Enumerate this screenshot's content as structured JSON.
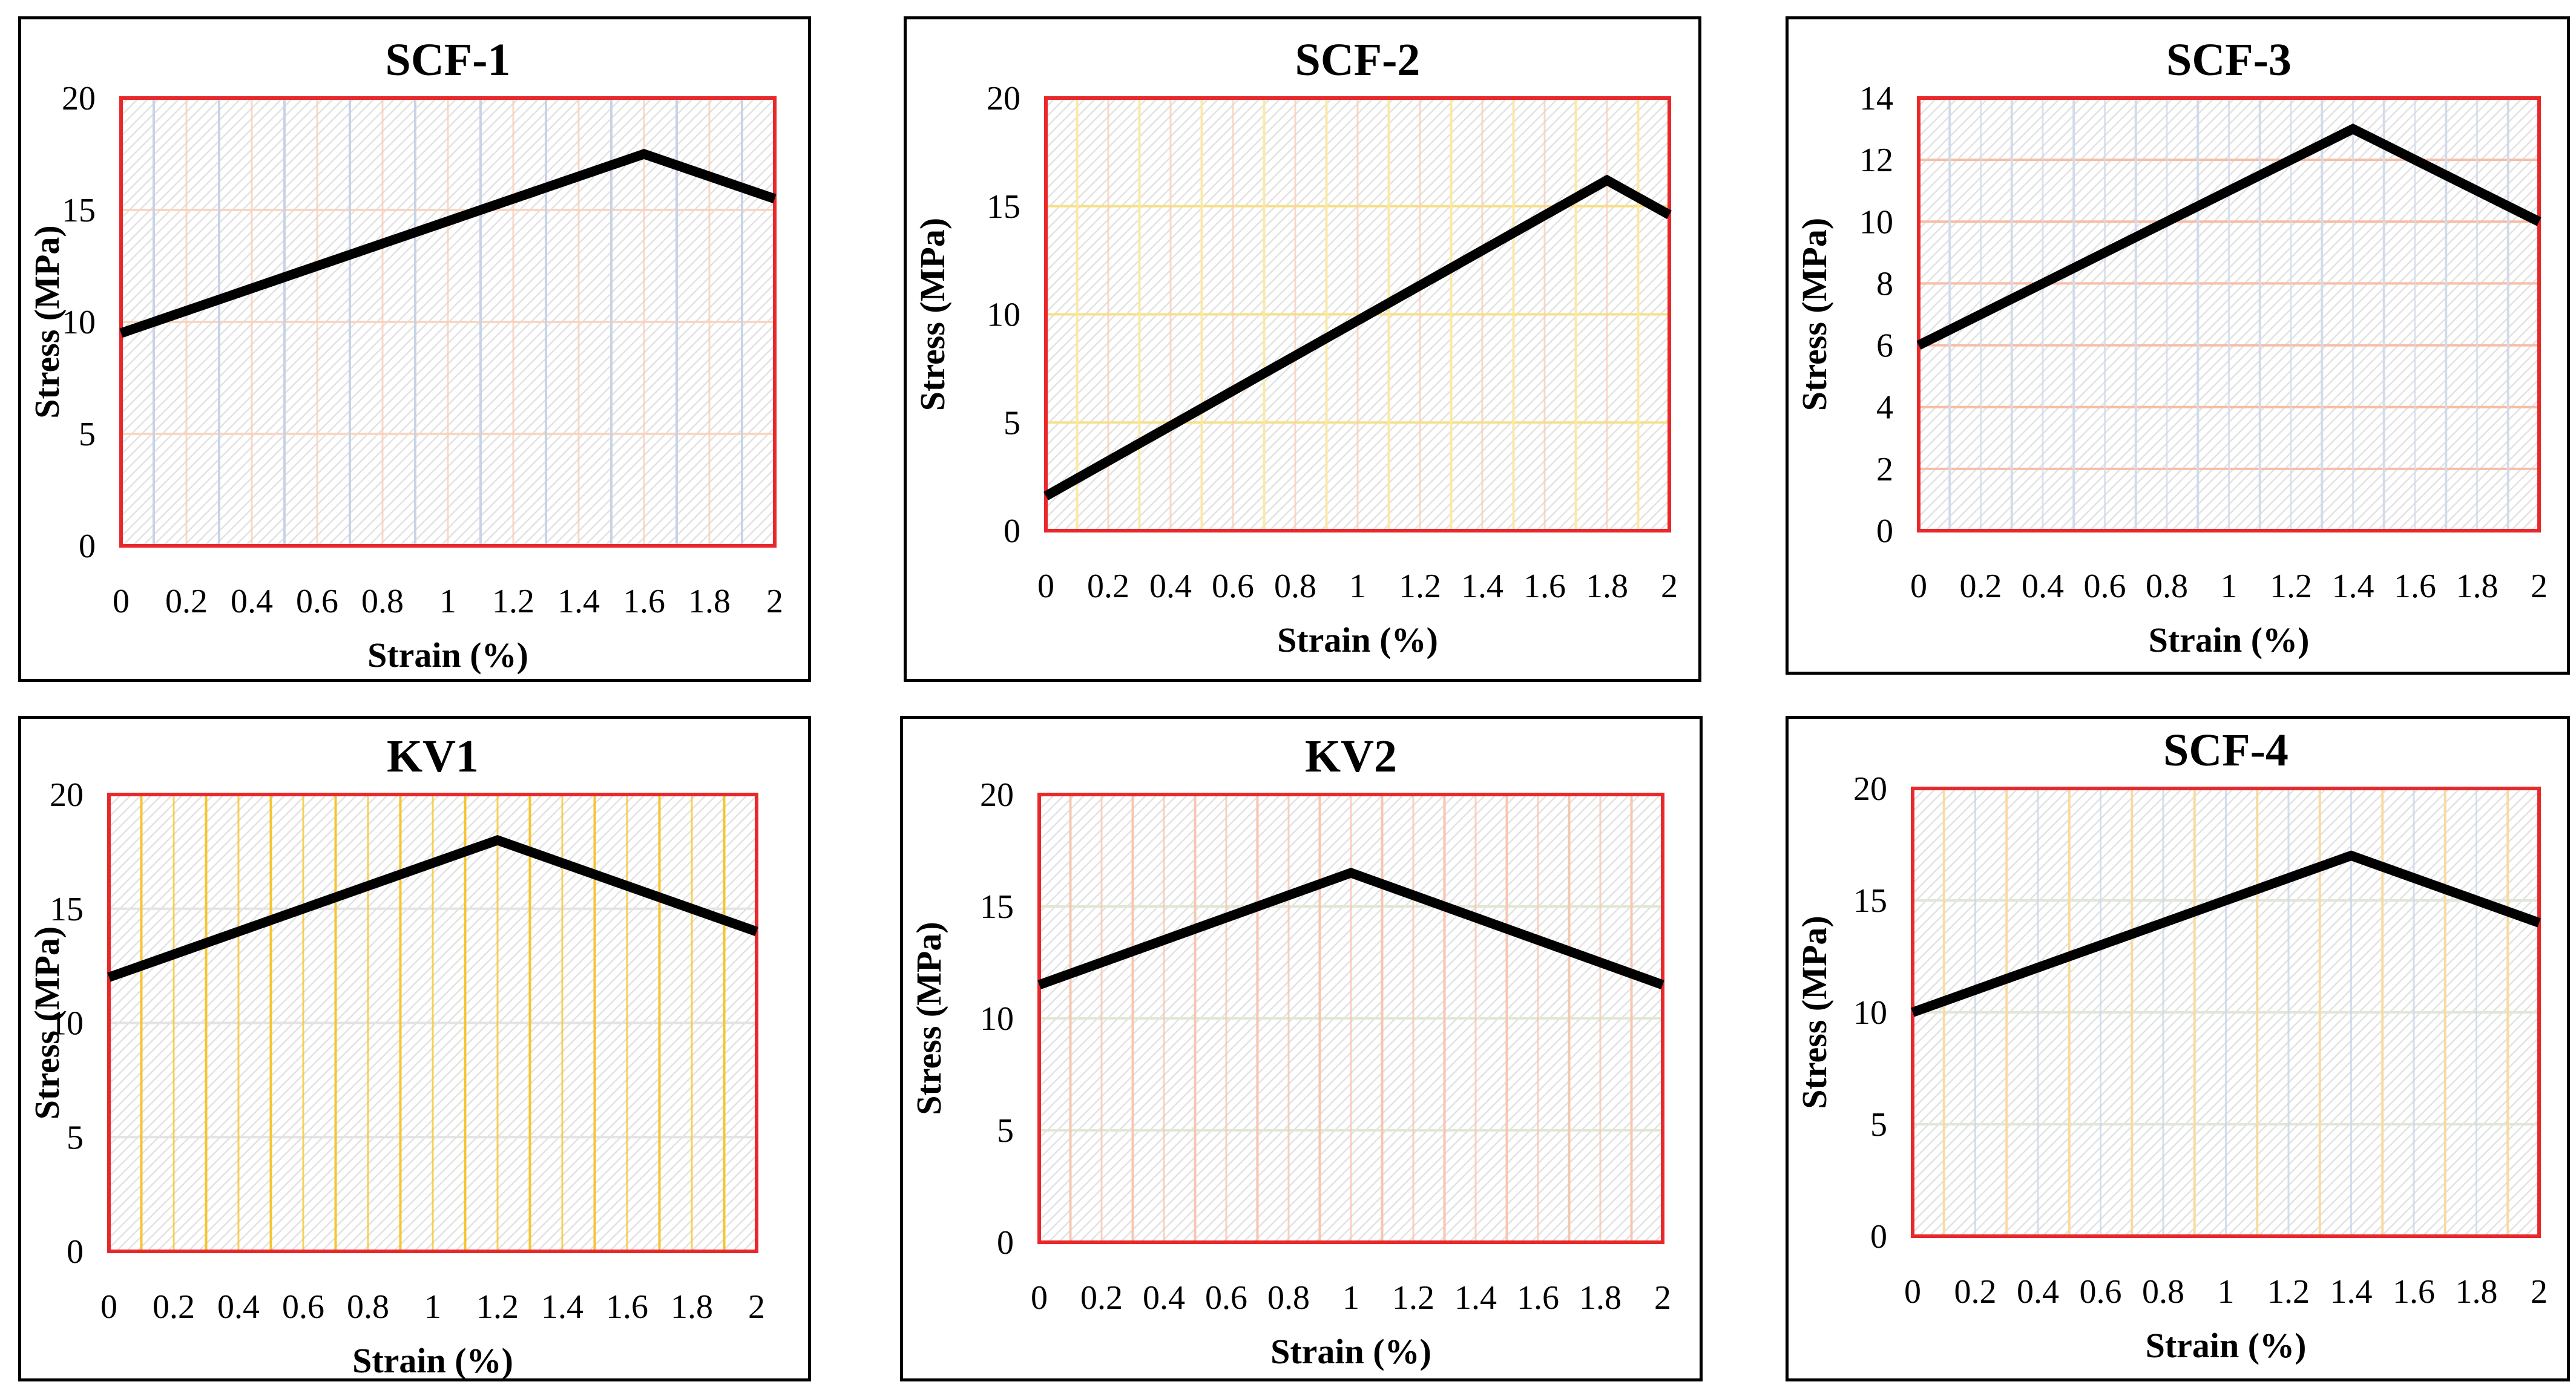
{
  "chart_data": [
    {
      "type": "line",
      "title": "SCF-1",
      "xlabel": "Strain (%)",
      "ylabel": "Stress (MPa)",
      "x": [
        0,
        1.6,
        2
      ],
      "y": [
        9.5,
        17.5,
        15.5
      ],
      "xticks": [
        "0",
        "0.2",
        "0.4",
        "0.6",
        "0.8",
        "1",
        "1.2",
        "1.4",
        "1.6",
        "1.8",
        "2"
      ],
      "yticks": [
        "0",
        "5",
        "10",
        "15",
        "20"
      ],
      "xlim": [
        0,
        2
      ],
      "ylim": [
        0,
        20
      ],
      "line_color": "#000000",
      "plot_border": "#e8282b",
      "hgrid_color": "#f7d7c2",
      "vgrid_colors": [
        "#c9d3e6",
        "#f7cfb8"
      ]
    },
    {
      "type": "line",
      "title": "SCF-2",
      "xlabel": "Strain (%)",
      "ylabel": "Stress (MPa)",
      "x": [
        0,
        1.8,
        2
      ],
      "y": [
        1.6,
        16.2,
        14.6
      ],
      "xticks": [
        "0",
        "0.2",
        "0.4",
        "0.6",
        "0.8",
        "1",
        "1.2",
        "1.4",
        "1.6",
        "1.8",
        "2"
      ],
      "yticks": [
        "0",
        "5",
        "10",
        "15",
        "20"
      ],
      "xlim": [
        0,
        2
      ],
      "ylim": [
        0,
        20
      ],
      "line_color": "#000000",
      "plot_border": "#e8282b",
      "hgrid_color": "#f7e08a",
      "vgrid_colors": [
        "#fbe9a6",
        "#f7cfb8"
      ]
    },
    {
      "type": "line",
      "title": "SCF-3",
      "xlabel": "Strain (%)",
      "ylabel": "Stress (MPa)",
      "x": [
        0,
        1.4,
        2
      ],
      "y": [
        6,
        13,
        10
      ],
      "xticks": [
        "0",
        "0.2",
        "0.4",
        "0.6",
        "0.8",
        "1",
        "1.2",
        "1.4",
        "1.6",
        "1.8",
        "2"
      ],
      "yticks": [
        "0",
        "2",
        "4",
        "6",
        "8",
        "10",
        "12",
        "14"
      ],
      "xlim": [
        0,
        2
      ],
      "ylim": [
        0,
        14
      ],
      "line_color": "#000000",
      "plot_border": "#e8282b",
      "hgrid_color": "#f6bda7",
      "vgrid_colors": [
        "#d3dbe9",
        "#d3dbe9"
      ]
    },
    {
      "type": "line",
      "title": "KV1",
      "xlabel": "Strain (%)",
      "ylabel": "Stress (MPa)",
      "x": [
        0,
        1.2,
        2
      ],
      "y": [
        12,
        18,
        14
      ],
      "xticks": [
        "0",
        "0.2",
        "0.4",
        "0.6",
        "0.8",
        "1",
        "1.2",
        "1.4",
        "1.6",
        "1.8",
        "2"
      ],
      "yticks": [
        "0",
        "5",
        "10",
        "15",
        "20"
      ],
      "xlim": [
        0,
        2
      ],
      "ylim": [
        0,
        20
      ],
      "line_color": "#000000",
      "plot_border": "#e8282b",
      "hgrid_color": "#e3e3e3",
      "vgrid_colors": [
        "#f6c430",
        "#f6c430"
      ]
    },
    {
      "type": "line",
      "title": "KV2",
      "xlabel": "Strain (%)",
      "ylabel": "Stress (MPa)",
      "x": [
        0,
        1,
        2
      ],
      "y": [
        11.5,
        16.5,
        11.5
      ],
      "xticks": [
        "0",
        "0.2",
        "0.4",
        "0.6",
        "0.8",
        "1",
        "1.2",
        "1.4",
        "1.6",
        "1.8",
        "2"
      ],
      "yticks": [
        "0",
        "5",
        "10",
        "15",
        "20"
      ],
      "xlim": [
        0,
        2
      ],
      "ylim": [
        0,
        20
      ],
      "line_color": "#000000",
      "plot_border": "#e8282b",
      "hgrid_color": "#dfe8d6",
      "vgrid_colors": [
        "#f7c6b0",
        "#f7c6b0"
      ]
    },
    {
      "type": "line",
      "title": "SCF-4",
      "xlabel": "Strain (%)",
      "ylabel": "Stress (MPa)",
      "x": [
        0,
        1.4,
        2
      ],
      "y": [
        10,
        17,
        14
      ],
      "xticks": [
        "0",
        "0.2",
        "0.4",
        "0.6",
        "0.8",
        "1",
        "1.2",
        "1.4",
        "1.6",
        "1.8",
        "2"
      ],
      "yticks": [
        "0",
        "5",
        "10",
        "15",
        "20"
      ],
      "xlim": [
        0,
        2
      ],
      "ylim": [
        0,
        20
      ],
      "line_color": "#000000",
      "plot_border": "#e8282b",
      "hgrid_color": "#dfe8d6",
      "vgrid_colors": [
        "#f9dba0",
        "#c9d6ea"
      ]
    }
  ]
}
